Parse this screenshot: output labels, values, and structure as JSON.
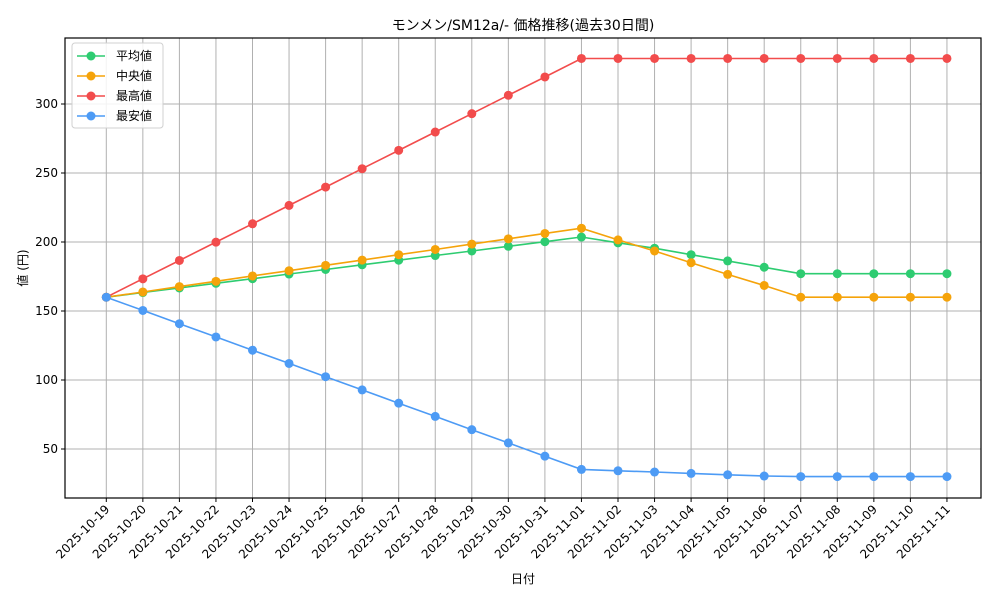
{
  "chart_data": {
    "type": "line",
    "title": "モンメン/SM12a/- 価格推移(過去30日間)",
    "xlabel": "日付",
    "ylabel": "値 (円)",
    "ylim": [
      15,
      348
    ],
    "yticks": [
      50,
      100,
      150,
      200,
      250,
      300
    ],
    "grid": true,
    "legend_position": "upper left",
    "categories": [
      "2025-10-19",
      "2025-10-20",
      "2025-10-21",
      "2025-10-22",
      "2025-10-23",
      "2025-10-24",
      "2025-10-25",
      "2025-10-26",
      "2025-10-27",
      "2025-10-28",
      "2025-10-29",
      "2025-10-30",
      "2025-10-31",
      "2025-11-01",
      "2025-11-02",
      "2025-11-03",
      "2025-11-04",
      "2025-11-05",
      "2025-11-06",
      "2025-11-07",
      "2025-11-08",
      "2025-11-09",
      "2025-11-10",
      "2025-11-11"
    ],
    "series": [
      {
        "name": "平均値",
        "color": "#2ecc71",
        "values": [
          160,
          163.4,
          166.7,
          170.1,
          173.4,
          176.8,
          180.1,
          183.5,
          186.8,
          190.2,
          193.5,
          196.9,
          200.2,
          203.6,
          199.4,
          195.5,
          190.8,
          186.3,
          181.7,
          177,
          177,
          177,
          177,
          177
        ]
      },
      {
        "name": "中央値",
        "color": "#f5a30a",
        "values": [
          160,
          163.8,
          167.7,
          171.5,
          175.4,
          179.2,
          183.1,
          186.9,
          190.8,
          194.6,
          198.5,
          202.3,
          206.2,
          210,
          201.5,
          193.5,
          185,
          176.5,
          168.5,
          160,
          160,
          160,
          160,
          160
        ]
      },
      {
        "name": "最高値",
        "color": "#f24c4c",
        "values": [
          160,
          173.3,
          186.6,
          199.9,
          213.2,
          226.5,
          239.8,
          253.1,
          266.4,
          279.7,
          293,
          306.3,
          319.6,
          333,
          333,
          333,
          333,
          333,
          333,
          333,
          333,
          333,
          333,
          333
        ]
      },
      {
        "name": "最安値",
        "color": "#4d9bf5",
        "values": [
          160,
          150.4,
          140.8,
          131.2,
          121.6,
          112,
          102.4,
          92.8,
          83.2,
          73.6,
          64,
          54.4,
          44.8,
          35.2,
          34.2,
          33.3,
          32.3,
          31.3,
          30.4,
          30,
          30,
          30,
          30,
          30
        ]
      }
    ]
  }
}
